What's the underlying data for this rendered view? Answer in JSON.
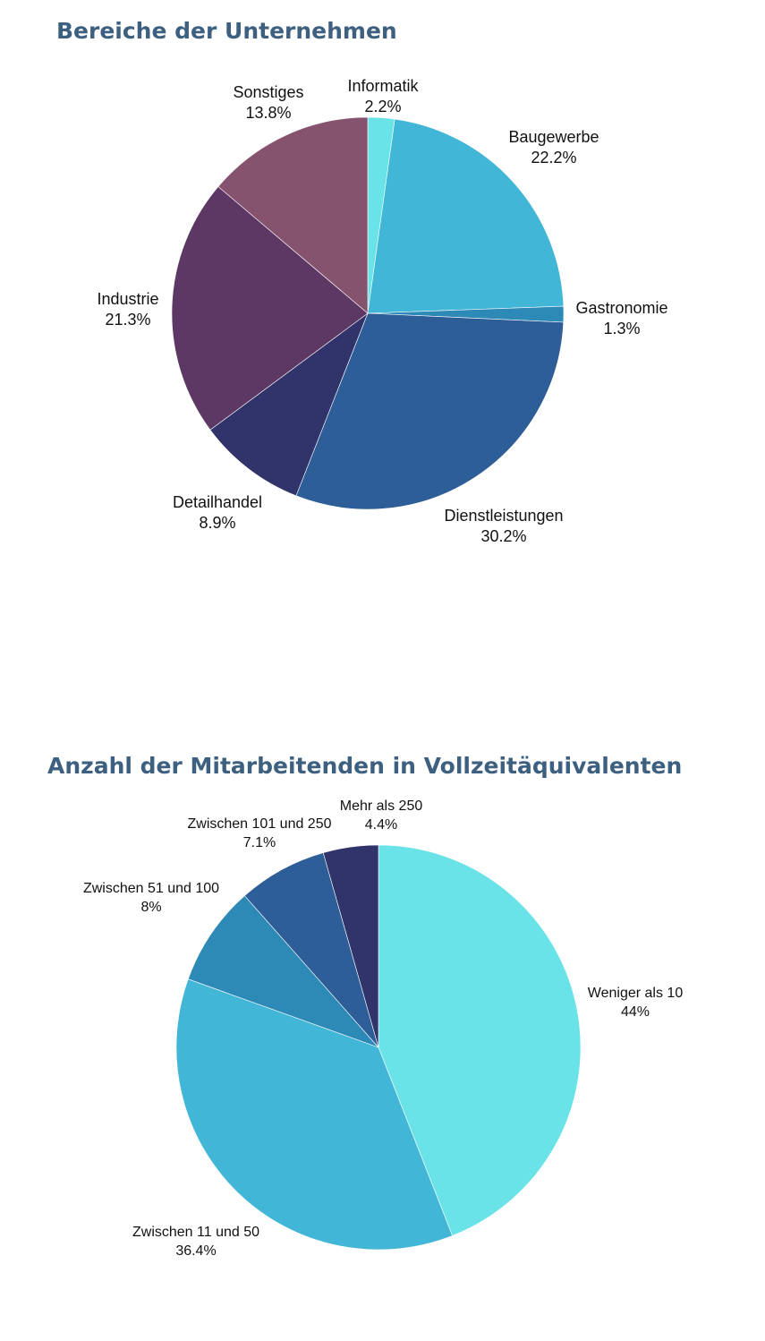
{
  "chart_data": [
    {
      "type": "pie",
      "title": "Bereiche der Unternehmen",
      "slices": [
        {
          "label": "Informatik",
          "value": 2.2,
          "value_label": "2.2%",
          "color": "#6ae3e8"
        },
        {
          "label": "Baugewerbe",
          "value": 22.2,
          "value_label": "22.2%",
          "color": "#42b6d6"
        },
        {
          "label": "Gastronomie",
          "value": 1.3,
          "value_label": "1.3%",
          "color": "#2d8ab7"
        },
        {
          "label": "Dienstleistungen",
          "value": 30.2,
          "value_label": "30.2%",
          "color": "#2e5e97"
        },
        {
          "label": "Detailhandel",
          "value": 8.9,
          "value_label": "8.9%",
          "color": "#31336b"
        },
        {
          "label": "Industrie",
          "value": 21.3,
          "value_label": "21.3%",
          "color": "#5e3865"
        },
        {
          "label": "Sonstiges",
          "value": 13.8,
          "value_label": "13.8%",
          "color": "#86536f"
        }
      ]
    },
    {
      "type": "pie",
      "title": "Anzahl der Mitarbeitenden in Vollzeitäquivalenten",
      "slices": [
        {
          "label": "Weniger als 10",
          "value": 44,
          "value_label": "44%",
          "color": "#6ae3e8"
        },
        {
          "label": "Zwischen 11 und 50",
          "value": 36.4,
          "value_label": "36.4%",
          "color": "#42b6d6"
        },
        {
          "label": "Zwischen 51 und 100",
          "value": 8,
          "value_label": "8%",
          "color": "#2d8ab7"
        },
        {
          "label": "Zwischen 101 und 250",
          "value": 7.1,
          "value_label": "7.1%",
          "color": "#2e5e97"
        },
        {
          "label": "Mehr als 250",
          "value": 4.4,
          "value_label": "4.4%",
          "color": "#31336b"
        }
      ]
    }
  ]
}
